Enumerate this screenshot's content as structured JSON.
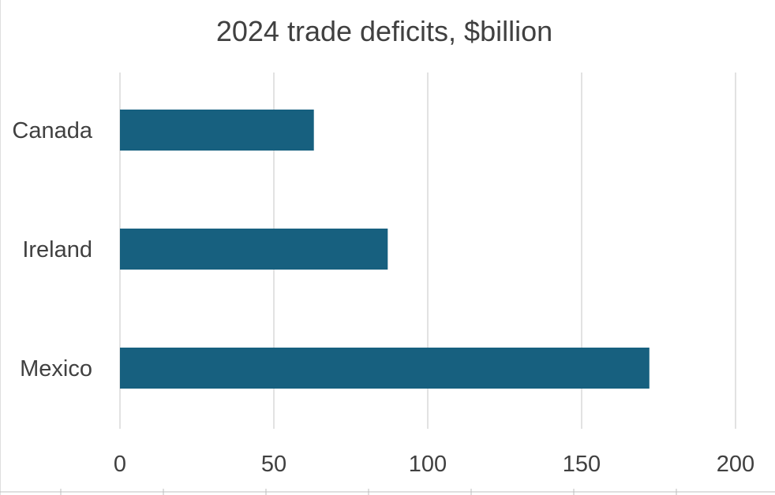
{
  "chart_data": {
    "type": "bar",
    "orientation": "horizontal",
    "title": "2024 trade deficits, $billion",
    "xlabel": "",
    "ylabel": "",
    "categories": [
      "Canada",
      "Ireland",
      "Mexico"
    ],
    "values": [
      63,
      87,
      172
    ],
    "xlim": [
      0,
      200
    ],
    "x_ticks": [
      0,
      50,
      100,
      150,
      200
    ],
    "grid": "vertical",
    "legend": "none",
    "bar_color": "#17607f"
  }
}
